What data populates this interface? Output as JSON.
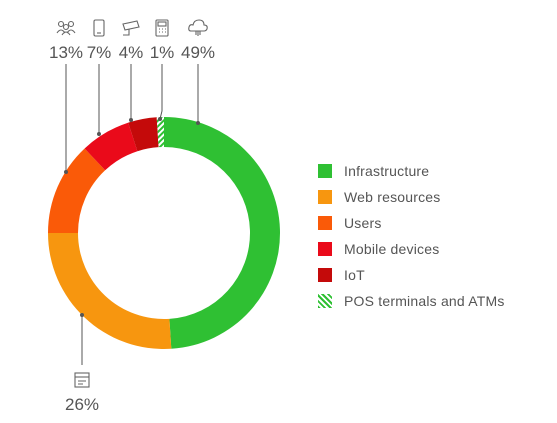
{
  "chart_data": {
    "type": "pie",
    "donut": true,
    "legend_position": "right",
    "slices": [
      {
        "name": "Infrastructure",
        "value": 49,
        "label": "49%",
        "color": "#2fc033",
        "icon": "cloud-icon"
      },
      {
        "name": "Web resources",
        "value": 26,
        "label": "26%",
        "color": "#f7960f",
        "icon": "web-page-icon"
      },
      {
        "name": "Users",
        "value": 13,
        "label": "13%",
        "color": "#fa5a08",
        "icon": "users-icon"
      },
      {
        "name": "Mobile devices",
        "value": 7,
        "label": "7%",
        "color": "#ea0a1a",
        "icon": "smartphone-icon"
      },
      {
        "name": "IoT",
        "value": 4,
        "label": "4%",
        "color": "#c40a0a",
        "icon": "camera-icon"
      },
      {
        "name": "POS terminals and ATMs",
        "value": 1,
        "label": "1%",
        "color": "#2fc033",
        "pattern": "striped",
        "icon": "pos-terminal-icon"
      }
    ]
  }
}
